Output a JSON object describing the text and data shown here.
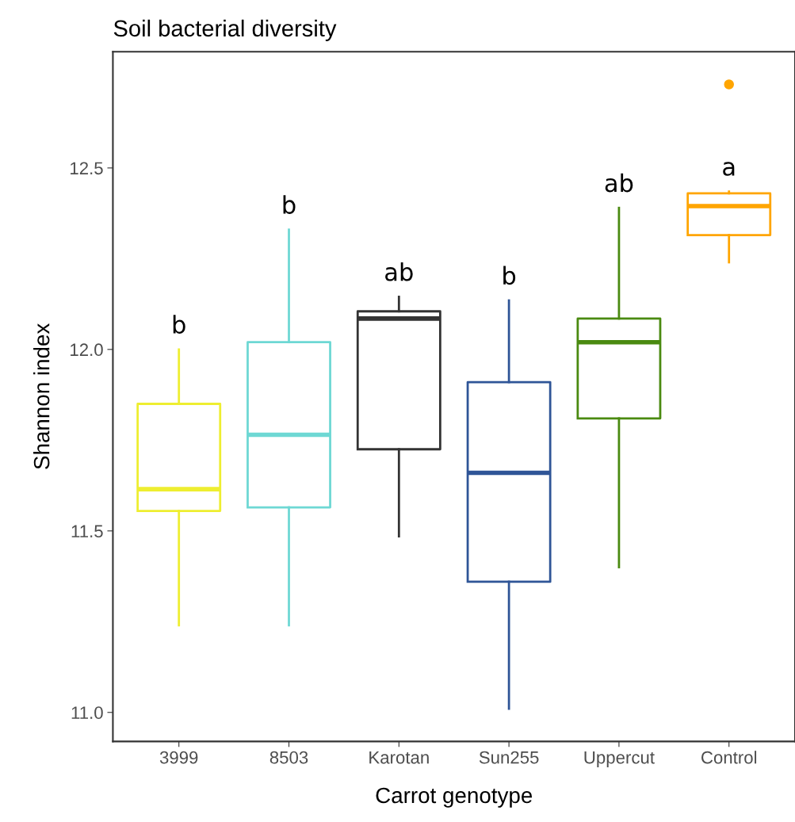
{
  "chart_data": {
    "type": "box",
    "title": "Soil bacterial diversity",
    "xlabel": "Carrot genotype",
    "ylabel": "Shannon index",
    "categories": [
      "3999",
      "8503",
      "Karotan",
      "Sun255",
      "Uppercut",
      "Control"
    ],
    "colors": [
      "#eeee30",
      "#6ed8d4",
      "#333333",
      "#2f5597",
      "#4a8a10",
      "#ffa500"
    ],
    "boxes": [
      {
        "low": 11.24,
        "q1": 11.555,
        "median": 11.615,
        "q3": 11.85,
        "high": 12.0
      },
      {
        "low": 11.24,
        "q1": 11.565,
        "median": 11.765,
        "q3": 12.02,
        "high": 12.33
      },
      {
        "low": 11.485,
        "q1": 11.725,
        "median": 12.085,
        "q3": 12.105,
        "high": 12.145
      },
      {
        "low": 11.01,
        "q1": 11.36,
        "median": 11.66,
        "q3": 11.91,
        "high": 12.135
      },
      {
        "low": 11.4,
        "q1": 11.81,
        "median": 12.02,
        "q3": 12.085,
        "high": 12.39
      },
      {
        "low": 12.24,
        "q1": 12.315,
        "median": 12.395,
        "q3": 12.43,
        "high": 12.435,
        "outliers": [
          12.73
        ]
      }
    ],
    "annotations": [
      "b",
      "b",
      "ab",
      "b",
      "ab",
      "a"
    ],
    "ylim": [
      10.92,
      12.82
    ],
    "yticks": [
      {
        "value": 11.0,
        "label": "11.0"
      },
      {
        "value": 11.5,
        "label": "11.5"
      },
      {
        "value": 12.0,
        "label": "12.0"
      },
      {
        "value": 12.5,
        "label": "12.5"
      }
    ],
    "grid": false,
    "legend": false
  }
}
